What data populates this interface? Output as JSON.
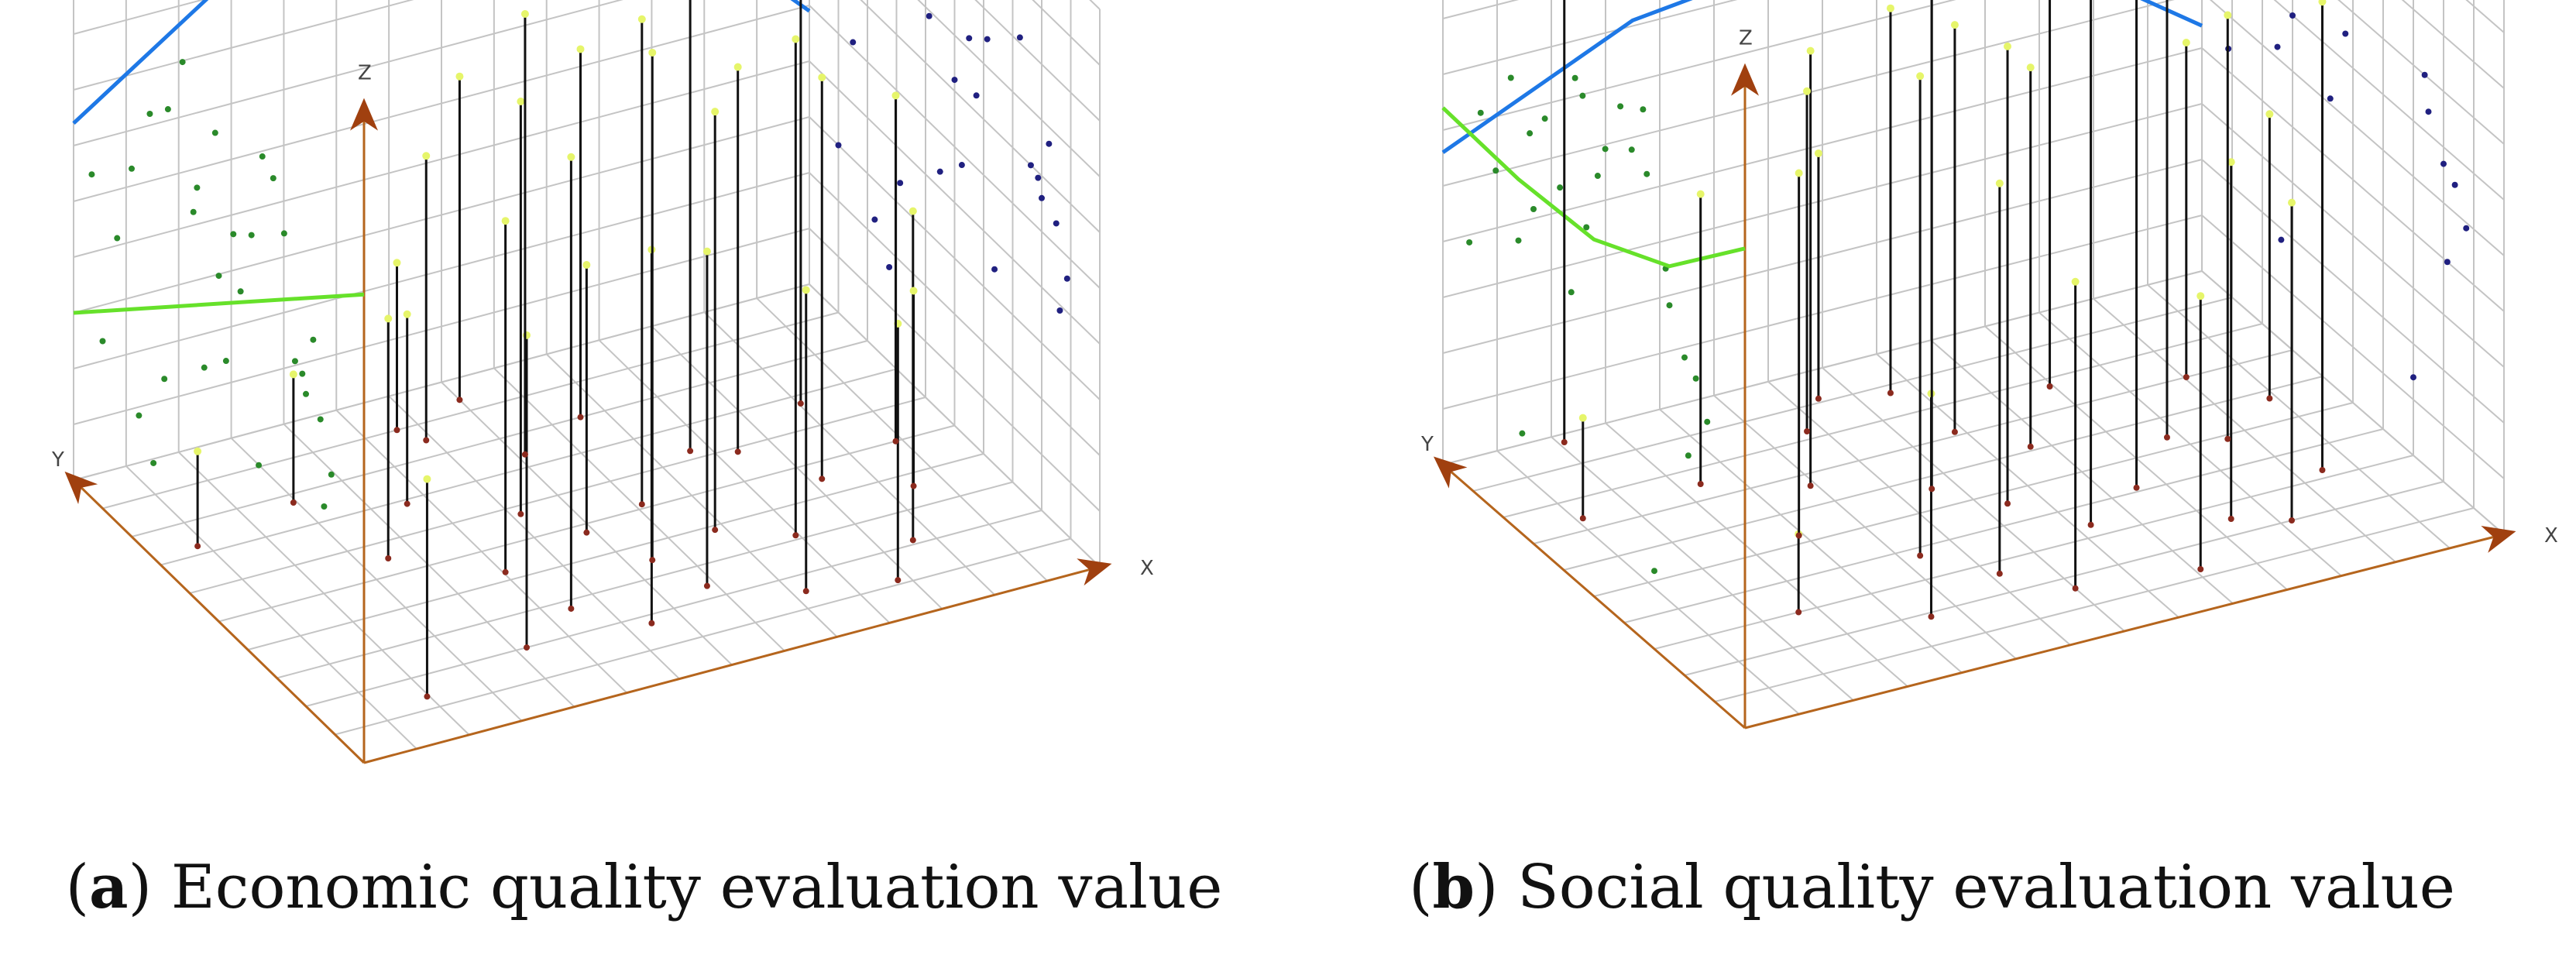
{
  "chart_data": [
    {
      "type": "scatter",
      "panel_letter": "a",
      "title": "Economic quality evaluation value",
      "axis_labels": {
        "x": "X",
        "y": "Y",
        "z": "Z"
      },
      "grid": true,
      "colors": {
        "axis": "#b5651d",
        "arrow": "#a0400f",
        "grid": "#c4c4c4",
        "x_projection_trend": "#1e78e6",
        "y_projection_trend": "#66e12a",
        "stem": "#111111",
        "point_top": "#e6f56a",
        "point_base": "#8b2a1e",
        "projection_y": "#2a8a2a",
        "projection_x": "#202080"
      },
      "scale": {
        "x": [
          0,
          10
        ],
        "y": [
          0,
          8
        ],
        "z": [
          0,
          10
        ]
      },
      "points": [
        {
          "x": 0.6,
          "y": 5.8,
          "z": 1.7
        },
        {
          "x": 1.4,
          "y": 1.1,
          "z": 3.9
        },
        {
          "x": 2.1,
          "y": 6.2,
          "z": 2.3
        },
        {
          "x": 2.5,
          "y": 4.4,
          "z": 4.3
        },
        {
          "x": 3.0,
          "y": 1.6,
          "z": 5.6
        },
        {
          "x": 3.3,
          "y": 5.5,
          "z": 3.4
        },
        {
          "x": 3.6,
          "y": 3.4,
          "z": 6.3
        },
        {
          "x": 3.9,
          "y": 2.2,
          "z": 8.1
        },
        {
          "x": 4.2,
          "y": 6.8,
          "z": 5.1
        },
        {
          "x": 4.4,
          "y": 4.6,
          "z": 7.4
        },
        {
          "x": 4.6,
          "y": 1.4,
          "z": 6.7
        },
        {
          "x": 4.9,
          "y": 3.8,
          "z": 4.8
        },
        {
          "x": 5.1,
          "y": 5.9,
          "z": 7.9
        },
        {
          "x": 5.3,
          "y": 2.8,
          "z": 9.1
        },
        {
          "x": 5.6,
          "y": 1.9,
          "z": 6.0
        },
        {
          "x": 5.8,
          "y": 4.1,
          "z": 8.7
        },
        {
          "x": 6.1,
          "y": 6.4,
          "z": 6.6
        },
        {
          "x": 6.3,
          "y": 3.1,
          "z": 7.5
        },
        {
          "x": 6.6,
          "y": 1.2,
          "z": 5.4
        },
        {
          "x": 6.9,
          "y": 5.0,
          "z": 9.4
        },
        {
          "x": 7.1,
          "y": 2.5,
          "z": 8.9
        },
        {
          "x": 7.4,
          "y": 4.7,
          "z": 6.9
        },
        {
          "x": 7.7,
          "y": 0.9,
          "z": 4.6
        },
        {
          "x": 8.0,
          "y": 3.6,
          "z": 7.2
        },
        {
          "x": 8.3,
          "y": 1.7,
          "z": 5.9
        },
        {
          "x": 8.6,
          "y": 5.4,
          "z": 8.3
        },
        {
          "x": 8.9,
          "y": 2.9,
          "z": 3.5
        },
        {
          "x": 9.2,
          "y": 4.0,
          "z": 6.2
        },
        {
          "x": 4.0,
          "y": 7.2,
          "z": 3.0
        },
        {
          "x": 5.0,
          "y": 7.5,
          "z": 5.8
        }
      ],
      "trend_xz": [
        {
          "x": 0.0,
          "z": 6.4
        },
        {
          "x": 2.5,
          "z": 8.6
        },
        {
          "x": 5.0,
          "z": 9.3
        },
        {
          "x": 7.5,
          "z": 8.1
        },
        {
          "x": 10.0,
          "z": 4.9
        }
      ],
      "trend_yz": [
        {
          "y": 0.0,
          "z": 8.4
        },
        {
          "y": 8.0,
          "z": 3.0
        }
      ]
    },
    {
      "type": "scatter",
      "panel_letter": "b",
      "title": "Social quality evaluation value",
      "axis_labels": {
        "x": "X",
        "y": "Y",
        "z": "Z"
      },
      "grid": true,
      "colors": {
        "axis": "#b5651d",
        "arrow": "#a0400f",
        "grid": "#c4c4c4",
        "x_projection_trend": "#1e78e6",
        "y_projection_trend": "#66e12a",
        "stem": "#111111",
        "point_top": "#e6f56a",
        "point_base": "#8b2a1e",
        "projection_y": "#2a8a2a",
        "projection_x": "#202080"
      },
      "scale": {
        "x": [
          0,
          10
        ],
        "y": [
          0,
          8
        ],
        "z": [
          0,
          10
        ]
      },
      "points": [
        {
          "x": 0.8,
          "y": 5.9,
          "z": 1.8
        },
        {
          "x": 1.5,
          "y": 7.8,
          "z": 9.8
        },
        {
          "x": 1.9,
          "y": 2.4,
          "z": 1.4
        },
        {
          "x": 2.4,
          "y": 6.0,
          "z": 5.2
        },
        {
          "x": 2.8,
          "y": 4.2,
          "z": 6.5
        },
        {
          "x": 3.2,
          "y": 1.5,
          "z": 4.0
        },
        {
          "x": 3.5,
          "y": 5.3,
          "z": 7.8
        },
        {
          "x": 3.8,
          "y": 3.0,
          "z": 8.6
        },
        {
          "x": 4.1,
          "y": 6.6,
          "z": 6.1
        },
        {
          "x": 4.4,
          "y": 2.1,
          "z": 7.0
        },
        {
          "x": 4.7,
          "y": 4.5,
          "z": 9.0
        },
        {
          "x": 5.0,
          "y": 1.3,
          "z": 5.5
        },
        {
          "x": 5.3,
          "y": 3.7,
          "z": 8.2
        },
        {
          "x": 5.6,
          "y": 5.7,
          "z": 7.3
        },
        {
          "x": 5.9,
          "y": 2.7,
          "z": 9.5
        },
        {
          "x": 6.2,
          "y": 4.9,
          "z": 6.8
        },
        {
          "x": 6.5,
          "y": 1.0,
          "z": 4.9
        },
        {
          "x": 6.8,
          "y": 3.3,
          "z": 9.2
        },
        {
          "x": 7.1,
          "y": 6.2,
          "z": 8.0
        },
        {
          "x": 7.4,
          "y": 2.0,
          "z": 6.4
        },
        {
          "x": 7.7,
          "y": 4.3,
          "z": 8.8
        },
        {
          "x": 8.0,
          "y": 1.6,
          "z": 5.7
        },
        {
          "x": 8.3,
          "y": 3.9,
          "z": 7.6
        },
        {
          "x": 8.6,
          "y": 5.6,
          "z": 6.0
        },
        {
          "x": 8.9,
          "y": 2.6,
          "z": 8.4
        },
        {
          "x": 9.2,
          "y": 4.6,
          "z": 5.1
        },
        {
          "x": 4.6,
          "y": 7.3,
          "z": 4.4
        },
        {
          "x": 5.4,
          "y": 7.0,
          "z": 6.9
        }
      ],
      "trend_xz": [
        {
          "x": 0.0,
          "z": 5.6
        },
        {
          "x": 2.5,
          "z": 7.1
        },
        {
          "x": 5.0,
          "z": 7.5
        },
        {
          "x": 7.5,
          "z": 6.8
        },
        {
          "x": 10.0,
          "z": 4.4
        }
      ],
      "trend_yz": [
        {
          "y": 0.0,
          "z": 8.6
        },
        {
          "y": 2.0,
          "z": 7.1
        },
        {
          "y": 4.0,
          "z": 6.4
        },
        {
          "y": 6.0,
          "z": 6.3
        },
        {
          "y": 8.0,
          "z": 6.4
        }
      ]
    }
  ]
}
